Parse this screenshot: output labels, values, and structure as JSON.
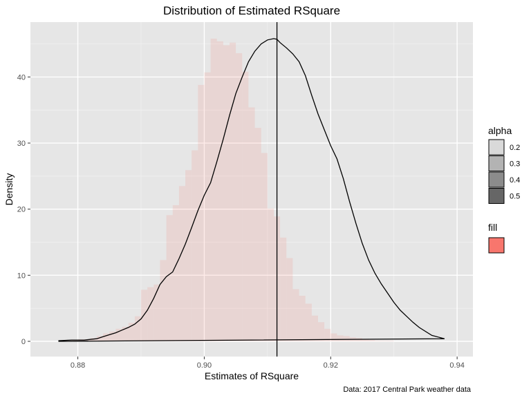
{
  "chart_data": {
    "type": "histogram",
    "title": "Distribution of Estimated RSquare",
    "xlabel": "Estimates of RSquare",
    "ylabel": "Density",
    "caption": "Data: 2017 Central Park weather data",
    "xlim": [
      0.8725,
      0.9425
    ],
    "ylim": [
      -2.3,
      48.3
    ],
    "x_ticks": [
      0.88,
      0.9,
      0.92,
      0.94
    ],
    "x_tick_labels": [
      "0.88",
      "0.90",
      "0.92",
      "0.94"
    ],
    "y_ticks": [
      0,
      10,
      20,
      30,
      40
    ],
    "y_tick_labels": [
      "0",
      "10",
      "20",
      "30",
      "40"
    ],
    "grid": true,
    "histogram": {
      "bin_width": 0.001,
      "start": 0.877,
      "densities": [
        0.1,
        0.1,
        0.2,
        0.3,
        0.3,
        0.5,
        0.8,
        1.2,
        1.5,
        1.9,
        2.2,
        2.8,
        3.8,
        7.8,
        8.2,
        8.6,
        12.3,
        19.1,
        20.6,
        23.5,
        25.9,
        28.9,
        38.8,
        40.7,
        45.8,
        45.4,
        44.8,
        45.2,
        43.6,
        40.8,
        35.4,
        32.3,
        28.5,
        20.1,
        18.9,
        15.7,
        12.6,
        7.9,
        6.9,
        5.7,
        3.9,
        2.9,
        1.9,
        1.2,
        0.9,
        0.8,
        0.6,
        0.5,
        0.3,
        0.2,
        0.1,
        0.1,
        0.1,
        0.0,
        0.0,
        0.0,
        0.0,
        0.0,
        0.0,
        0.0,
        0.0
      ],
      "fill": "#F8766D",
      "alpha": 0.15
    },
    "density_curve": {
      "x": [
        0.877,
        0.879,
        0.881,
        0.883,
        0.884,
        0.885,
        0.886,
        0.887,
        0.888,
        0.889,
        0.89,
        0.891,
        0.892,
        0.893,
        0.894,
        0.895,
        0.896,
        0.897,
        0.898,
        0.899,
        0.9,
        0.901,
        0.902,
        0.903,
        0.904,
        0.905,
        0.906,
        0.907,
        0.908,
        0.909,
        0.91,
        0.911,
        0.9115,
        0.912,
        0.913,
        0.914,
        0.915,
        0.916,
        0.917,
        0.918,
        0.919,
        0.92,
        0.921,
        0.922,
        0.923,
        0.924,
        0.925,
        0.926,
        0.927,
        0.928,
        0.929,
        0.93,
        0.931,
        0.932,
        0.933,
        0.934,
        0.936,
        0.938
      ],
      "y": [
        0.1,
        0.2,
        0.2,
        0.4,
        0.7,
        1.0,
        1.3,
        1.7,
        2.1,
        2.6,
        3.4,
        4.7,
        6.5,
        8.6,
        9.8,
        10.5,
        12.5,
        14.7,
        17.2,
        19.8,
        22.1,
        24.0,
        27.2,
        30.6,
        34.2,
        37.5,
        40.0,
        42.3,
        43.9,
        45.0,
        45.6,
        45.8,
        45.7,
        45.2,
        44.4,
        43.5,
        42.3,
        40.2,
        37.2,
        34.4,
        32.0,
        29.6,
        27.6,
        24.6,
        21.1,
        17.8,
        14.8,
        12.3,
        10.3,
        8.7,
        7.3,
        5.9,
        4.7,
        3.8,
        2.9,
        2.1,
        0.9,
        0.4
      ]
    },
    "vline_x": 0.9115,
    "legend": {
      "alpha": {
        "title": "alpha",
        "items": [
          {
            "label": "0.2",
            "color": "#d9d9d9"
          },
          {
            "label": "0.3",
            "color": "#b3b3b3"
          },
          {
            "label": "0.4",
            "color": "#8c8c8c"
          },
          {
            "label": "0.5",
            "color": "#666666"
          }
        ]
      },
      "fill": {
        "title": "fill",
        "color": "#F8766D"
      }
    },
    "colors": {
      "panel": "#e6e6e6",
      "grid_major": "#ffffff",
      "grid_minor": "#f2f2f2",
      "curve": "#000000"
    }
  }
}
